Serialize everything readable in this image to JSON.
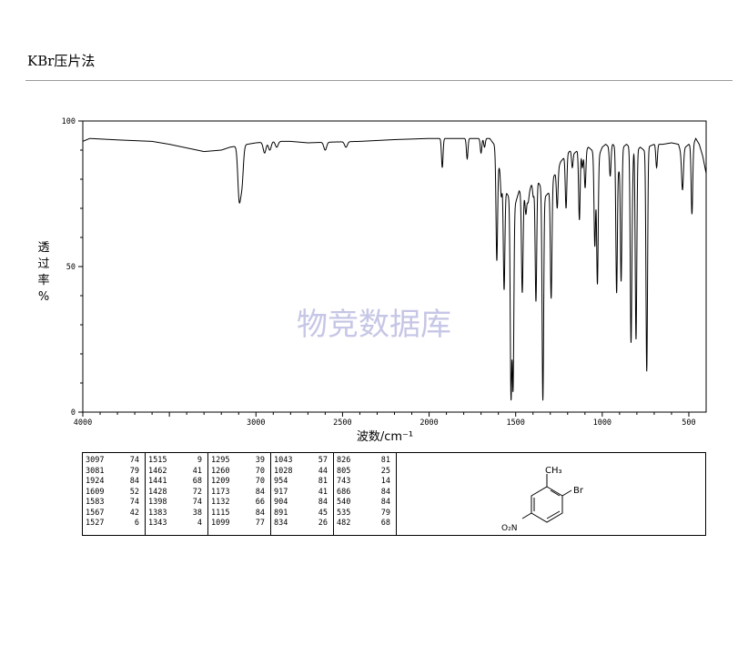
{
  "header": {
    "title": "KBr压片法"
  },
  "watermark": "物竞数据库",
  "chart_data": {
    "type": "line",
    "xlabel": "波数/cm⁻¹",
    "ylabel": "透过率%",
    "xlim": [
      4000,
      400
    ],
    "ylim": [
      0,
      100
    ],
    "xticks": [
      4000,
      3000,
      2500,
      2000,
      1500,
      1000,
      500
    ],
    "xtick_labels": [
      "4000",
      "3000",
      "2500",
      "2000",
      "1500",
      "1000",
      "500"
    ],
    "yticks": [
      0,
      50,
      100
    ],
    "ytick_labels": [
      "0",
      "50",
      "100"
    ],
    "baseline_points": [
      [
        4000,
        93
      ],
      [
        3960,
        94
      ],
      [
        3800,
        93.5
      ],
      [
        3600,
        93
      ],
      [
        3500,
        92
      ],
      [
        3300,
        89.5
      ],
      [
        3200,
        90
      ],
      [
        3150,
        91
      ],
      [
        3000,
        92.5
      ],
      [
        2900,
        93
      ],
      [
        2800,
        93
      ],
      [
        2700,
        92.5
      ],
      [
        2600,
        92.7
      ],
      [
        2400,
        93
      ],
      [
        2200,
        93.6
      ],
      [
        2000,
        94
      ],
      [
        1800,
        94
      ],
      [
        1700,
        94
      ],
      [
        1650,
        94
      ],
      [
        1625,
        92
      ],
      [
        1600,
        85
      ],
      [
        1580,
        82
      ],
      [
        1560,
        76
      ],
      [
        1540,
        74
      ],
      [
        1520,
        70
      ],
      [
        1500,
        72
      ],
      [
        1480,
        76
      ],
      [
        1460,
        75
      ],
      [
        1440,
        74
      ],
      [
        1420,
        76
      ],
      [
        1400,
        80
      ],
      [
        1380,
        80
      ],
      [
        1360,
        78
      ],
      [
        1330,
        74
      ],
      [
        1300,
        76
      ],
      [
        1280,
        81
      ],
      [
        1260,
        83
      ],
      [
        1240,
        86
      ],
      [
        1200,
        89
      ],
      [
        1180,
        90
      ],
      [
        1160,
        89
      ],
      [
        1140,
        90
      ],
      [
        1120,
        91
      ],
      [
        1100,
        90
      ],
      [
        1080,
        91
      ],
      [
        1060,
        90
      ],
      [
        1040,
        88
      ],
      [
        1020,
        88
      ],
      [
        1000,
        91
      ],
      [
        980,
        92
      ],
      [
        960,
        91
      ],
      [
        940,
        92
      ],
      [
        920,
        91
      ],
      [
        900,
        92
      ],
      [
        880,
        91
      ],
      [
        860,
        92
      ],
      [
        840,
        91
      ],
      [
        820,
        92
      ],
      [
        800,
        90
      ],
      [
        780,
        91
      ],
      [
        760,
        90
      ],
      [
        740,
        91
      ],
      [
        700,
        92
      ],
      [
        650,
        92
      ],
      [
        600,
        92.5
      ],
      [
        560,
        92
      ],
      [
        540,
        88
      ],
      [
        520,
        91
      ],
      [
        500,
        92
      ],
      [
        480,
        91
      ],
      [
        460,
        94
      ],
      [
        440,
        92
      ],
      [
        420,
        88
      ],
      [
        400,
        82
      ]
    ],
    "peaks": [
      {
        "wavenumber": 3097,
        "transmittance": 74
      },
      {
        "wavenumber": 3081,
        "transmittance": 79
      },
      {
        "wavenumber": 1924,
        "transmittance": 84
      },
      {
        "wavenumber": 1609,
        "transmittance": 52
      },
      {
        "wavenumber": 1583,
        "transmittance": 74
      },
      {
        "wavenumber": 1567,
        "transmittance": 42
      },
      {
        "wavenumber": 1527,
        "transmittance": 6
      },
      {
        "wavenumber": 1515,
        "transmittance": 9
      },
      {
        "wavenumber": 1462,
        "transmittance": 41
      },
      {
        "wavenumber": 1441,
        "transmittance": 68
      },
      {
        "wavenumber": 1428,
        "transmittance": 72
      },
      {
        "wavenumber": 1398,
        "transmittance": 74
      },
      {
        "wavenumber": 1383,
        "transmittance": 38
      },
      {
        "wavenumber": 1343,
        "transmittance": 4
      },
      {
        "wavenumber": 1295,
        "transmittance": 39
      },
      {
        "wavenumber": 1260,
        "transmittance": 70
      },
      {
        "wavenumber": 1209,
        "transmittance": 70
      },
      {
        "wavenumber": 1173,
        "transmittance": 84
      },
      {
        "wavenumber": 1132,
        "transmittance": 66
      },
      {
        "wavenumber": 1115,
        "transmittance": 84
      },
      {
        "wavenumber": 1099,
        "transmittance": 77
      },
      {
        "wavenumber": 1043,
        "transmittance": 57
      },
      {
        "wavenumber": 1028,
        "transmittance": 44
      },
      {
        "wavenumber": 954,
        "transmittance": 81
      },
      {
        "wavenumber": 917,
        "transmittance": 41
      },
      {
        "wavenumber": 904,
        "transmittance": 84
      },
      {
        "wavenumber": 891,
        "transmittance": 45
      },
      {
        "wavenumber": 834,
        "transmittance": 26
      },
      {
        "wavenumber": 826,
        "transmittance": 81
      },
      {
        "wavenumber": 805,
        "transmittance": 25
      },
      {
        "wavenumber": 743,
        "transmittance": 14
      },
      {
        "wavenumber": 686,
        "transmittance": 84
      },
      {
        "wavenumber": 540,
        "transmittance": 84
      },
      {
        "wavenumber": 535,
        "transmittance": 79
      },
      {
        "wavenumber": 482,
        "transmittance": 68
      }
    ],
    "extra_bands": [
      [
        2950,
        89
      ],
      [
        2920,
        90
      ],
      [
        2880,
        91
      ],
      [
        2600,
        90
      ],
      [
        2480,
        91
      ],
      [
        1780,
        87
      ],
      [
        1700,
        89
      ],
      [
        1680,
        91
      ]
    ]
  },
  "peak_table": [
    [
      [
        "3097",
        "74"
      ],
      [
        "3081",
        "79"
      ],
      [
        "1924",
        "84"
      ],
      [
        "1609",
        "52"
      ],
      [
        "1583",
        "74"
      ],
      [
        "1567",
        "42"
      ],
      [
        "1527",
        "6"
      ]
    ],
    [
      [
        "1515",
        "9"
      ],
      [
        "1462",
        "41"
      ],
      [
        "1441",
        "68"
      ],
      [
        "1428",
        "72"
      ],
      [
        "1398",
        "74"
      ],
      [
        "1383",
        "38"
      ],
      [
        "1343",
        "4"
      ]
    ],
    [
      [
        "1295",
        "39"
      ],
      [
        "1260",
        "70"
      ],
      [
        "1209",
        "70"
      ],
      [
        "1173",
        "84"
      ],
      [
        "1132",
        "66"
      ],
      [
        "1115",
        "84"
      ],
      [
        "1099",
        "77"
      ]
    ],
    [
      [
        "1043",
        "57"
      ],
      [
        "1028",
        "44"
      ],
      [
        "954",
        "81"
      ],
      [
        "917",
        "41"
      ],
      [
        "904",
        "84"
      ],
      [
        "891",
        "45"
      ],
      [
        "834",
        "26"
      ]
    ],
    [
      [
        "826",
        "81"
      ],
      [
        "805",
        "25"
      ],
      [
        "743",
        "14"
      ],
      [
        "686",
        "84"
      ],
      [
        "540",
        "84"
      ],
      [
        "535",
        "79"
      ],
      [
        "482",
        "68"
      ]
    ]
  ],
  "structure": {
    "ch3_label": "CH₃",
    "br_label": "Br",
    "no2_label": "O₂N"
  }
}
